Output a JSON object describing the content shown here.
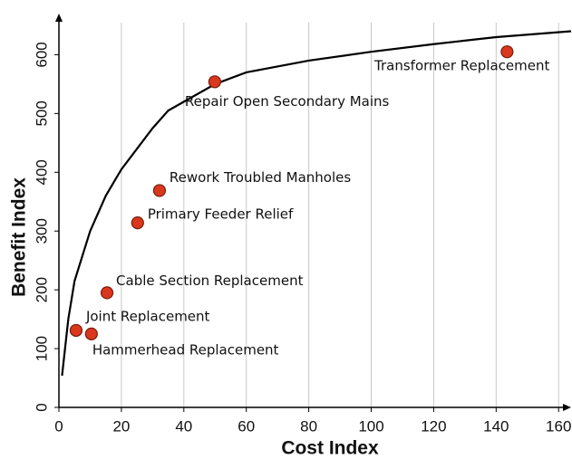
{
  "chart_data": {
    "type": "scatter",
    "x_label": "Cost Index",
    "y_label": "Benefit Index",
    "xlim": [
      0,
      164
    ],
    "ylim": [
      0,
      670
    ],
    "xticks": [
      0,
      20,
      40,
      60,
      80,
      100,
      120,
      140,
      160
    ],
    "yticks": [
      0,
      100,
      200,
      300,
      400,
      500,
      600
    ],
    "grid": "x",
    "points": {
      "color": "#d9381e",
      "labels": [
        "Joint Replacement",
        "Hammerhead Replacement",
        "Cable Section Replacement",
        "Primary Feeder Relief",
        "Rework Troubled Manholes",
        "Repair Open Secondary Mains",
        "Transformer Replacement"
      ],
      "x": [
        5.5,
        10.4,
        15.4,
        25.2,
        32.2,
        49.9,
        143.5
      ],
      "y": [
        131,
        125,
        195,
        314,
        369,
        554,
        605
      ]
    },
    "curve": {
      "color": "#000000",
      "x": [
        1,
        3,
        5,
        10,
        15,
        20,
        25,
        30,
        35,
        40,
        50,
        60,
        80,
        100,
        120,
        140,
        164
      ],
      "y": [
        54,
        150,
        215,
        300,
        360,
        405,
        440,
        475,
        505,
        520,
        550,
        570,
        590,
        605,
        618,
        630,
        640
      ]
    }
  }
}
